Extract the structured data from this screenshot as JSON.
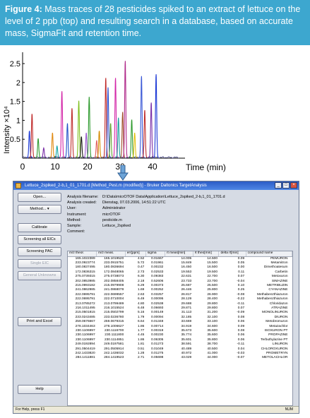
{
  "caption": {
    "figure_label": "Figure 4:",
    "text": " Mass traces of 28 pesticides spiked to an extract of lettuce on the level of 2 ppb (top) and resulting search in a database, based on accurate mass, SigmaFit and retention time."
  },
  "chart_data": {
    "type": "line",
    "title": "",
    "xlabel": "Time (min)",
    "ylabel": "Intensity ×10⁴",
    "xlim": [
      0,
      50
    ],
    "ylim": [
      0,
      2.8
    ],
    "x_ticks": [
      0,
      10,
      20,
      30,
      40
    ],
    "y_ticks": [
      0.5,
      1,
      1.5,
      2,
      2.5
    ],
    "x_tick_labels": [
      "0",
      "10",
      "20",
      "30",
      "40"
    ],
    "y_tick_labels": [
      "0.5",
      "1",
      "1.5",
      "2",
      "2.5"
    ],
    "grid": false,
    "peaks": [
      {
        "rt": 2.1,
        "height": 0.7,
        "color": "#1f3bd6"
      },
      {
        "rt": 2.9,
        "height": 1.15,
        "color": "#c02b2b"
      },
      {
        "rt": 4.8,
        "height": 0.5,
        "color": "#2f9b2f"
      },
      {
        "rt": 6.5,
        "height": 0.25,
        "color": "#7a2fa8"
      },
      {
        "rt": 9.2,
        "height": 0.65,
        "color": "#e08a12"
      },
      {
        "rt": 10.6,
        "height": 0.3,
        "color": "#10a5a5"
      },
      {
        "rt": 12.1,
        "height": 1.75,
        "color": "#d326a8"
      },
      {
        "rt": 13.8,
        "height": 0.9,
        "color": "#2050c8"
      },
      {
        "rt": 15.2,
        "height": 1.3,
        "color": "#c03030"
      },
      {
        "rt": 17.3,
        "height": 1.5,
        "color": "#7fbf1c"
      },
      {
        "rt": 18.1,
        "height": 0.55,
        "color": "#1a1a1a"
      },
      {
        "rt": 19.6,
        "height": 0.65,
        "color": "#9b59d0"
      },
      {
        "rt": 20.5,
        "height": 1.6,
        "color": "#2f9b2f"
      },
      {
        "rt": 22.8,
        "height": 0.45,
        "color": "#e06060"
      },
      {
        "rt": 23.6,
        "height": 0.7,
        "color": "#d48a00"
      },
      {
        "rt": 25.6,
        "height": 2.1,
        "color": "#c02b2b"
      },
      {
        "rt": 26.3,
        "height": 1.85,
        "color": "#3050d0"
      },
      {
        "rt": 27.1,
        "height": 0.9,
        "color": "#60a030"
      },
      {
        "rt": 28.6,
        "height": 2.1,
        "color": "#d326a8"
      },
      {
        "rt": 29.5,
        "height": 1.05,
        "color": "#1aa0a0"
      },
      {
        "rt": 30.8,
        "height": 1.2,
        "color": "#a0522d"
      },
      {
        "rt": 31.6,
        "height": 2.55,
        "color": "#b02a8a"
      },
      {
        "rt": 33.6,
        "height": 1.0,
        "color": "#2f9b2f"
      },
      {
        "rt": 34.5,
        "height": 0.65,
        "color": "#e0c010"
      },
      {
        "rt": 36.6,
        "height": 2.15,
        "color": "#3a58d6"
      },
      {
        "rt": 37.6,
        "height": 1.25,
        "color": "#c03030"
      },
      {
        "rt": 39.6,
        "height": 1.45,
        "color": "#7a2fa8"
      },
      {
        "rt": 41.1,
        "height": 2.2,
        "color": "#1f3bd6"
      }
    ]
  },
  "window": {
    "title": "Lettuce_2spiked_2-b,1_01_1701.d [Method_Pest.m (modified)] - Bruker Daltonics TargetAnalysis",
    "buttons": [
      {
        "label": "Open...",
        "enabled": true
      },
      {
        "label": "Method... ▾",
        "enabled": true
      },
      {
        "label": "Calibrate",
        "enabled": true
      },
      {
        "label": "Screening all EICs",
        "enabled": true
      },
      {
        "label": "Screening PAC",
        "enabled": true
      },
      {
        "label": "Single EIC",
        "enabled": false
      },
      {
        "label": "General Unknowns",
        "enabled": false
      },
      {
        "label": "Print and Excel",
        "enabled": true
      },
      {
        "label": "Help",
        "enabled": true
      }
    ],
    "info": [
      {
        "k": "Analysis filename:",
        "v": "D:\\Data\\micrOTOF Data\\Application\\Lettuce_2spiked_2-b,1_01_1701.d"
      },
      {
        "k": "Analysis created:",
        "v": "Dienstag, 07.03.2006, 14:51:22 UTC"
      },
      {
        "k": "User:",
        "v": "Administrator"
      },
      {
        "k": "Instrument:",
        "v": "micrOTOF"
      },
      {
        "k": "Method:",
        "v": "pesticide.m"
      },
      {
        "k": "Sample:",
        "v": "Lettuce_2spiked"
      },
      {
        "k": "Comment:",
        "v": ""
      }
    ],
    "columns": [
      "m/z theor.",
      "m/z meas.",
      "err[ppm]",
      "sigma",
      "rt meas[min]",
      "rt theo[min]",
      "delta rt[min]",
      "compound name"
    ],
    "rows": [
      [
        "165.1022389",
        "165.1019520",
        "4.52",
        "0.01667",
        "14.005",
        "14.500",
        "0.09",
        "PEMURON"
      ],
      [
        "233.0923774",
        "233.0915751",
        "5.72",
        "0.01961",
        "15.849",
        "15.500",
        "0.05",
        "Metamitron"
      ],
      [
        "180.0837495",
        "180.0836694",
        "0.47",
        "0.00232",
        "16.450",
        "16.500",
        "0.00",
        "Dimethoatesum"
      ],
      [
        "172.0836315",
        "172.0848065",
        "2.73",
        "0.02533",
        "19.553",
        "19.500",
        "0.11",
        "Carbetin"
      ],
      [
        "275.0739315",
        "275.0738073",
        "6.30",
        "0.09383",
        "22.631",
        "22.700",
        "0.07",
        "Metoxuron"
      ],
      [
        "202.0853985",
        "202.0858405",
        "2.18",
        "0.52606",
        "23.733",
        "23.700",
        "-0.04",
        "SIMAZINE"
      ],
      [
        "215.0993182",
        "215.0979908",
        "6.29",
        "0.00373",
        "25.687",
        "25.500",
        "0.10",
        "METRIBUZIN"
      ],
      [
        "241.0862985",
        "241.0868078",
        "1.69",
        "0.00252",
        "26.446",
        "25.800",
        "0.25",
        "CYANAZINE"
      ],
      [
        "222.0695791",
        "222.0699557",
        "2.63",
        "0.03257",
        "26.817",
        "26.900",
        "-0.08",
        "Methabenzthiazuron"
      ],
      [
        "222.0695791",
        "222.0710004",
        "6.49",
        "0.00095",
        "28.129",
        "28.400",
        "-0.22",
        "Methabenzthiazuron"
      ],
      [
        "213.0785272",
        "213.0799489",
        "4.80",
        "0.02538",
        "29.688",
        "29.800",
        "-0.11",
        "Chloridazon"
      ],
      [
        "216.1011495",
        "216.1015524",
        "6.48",
        "0.06693",
        "29.871",
        "29.800",
        "0.07",
        "ATRAZINE"
      ],
      [
        "215.0501815",
        "215.0502799",
        "5.16",
        "0.00149",
        "31.113",
        "31.200",
        "-0.09",
        "MONOLINURON"
      ],
      [
        "233.0243485",
        "233.0236780",
        "1.79",
        "0.00094",
        "32.185",
        "32.100",
        "0.08",
        "DIURON"
      ],
      [
        "259.0676667",
        "259.0679315",
        "6.64",
        "0.01348",
        "33.669",
        "33.100",
        "0.06",
        "Metobromuron"
      ],
      [
        "278.1034463",
        "278.1006627",
        "1.86",
        "0.00714",
        "34.919",
        "34.600",
        "0.09",
        "Metazachlor"
      ],
      [
        "230.1106997",
        "230.1116700",
        "1.77",
        "0.00319",
        "35.673",
        "35.600",
        "0.08",
        "ISOXURON PT"
      ],
      [
        "230.1106997",
        "230.1111800",
        "4.45",
        "0.00230",
        "35.774",
        "35.600",
        "0.06",
        "PROPAZINE"
      ],
      [
        "230.1106997",
        "230.1114851",
        "1.86",
        "0.06305",
        "35.601",
        "35.800",
        "0.06",
        "Terbuthylazine PT"
      ],
      [
        "249.0192894",
        "249.0197581",
        "1.81",
        "0.01273",
        "38.591",
        "38.700",
        "-0.11",
        "LINURON"
      ],
      [
        "291.0504419",
        "291.0505914",
        "0.51",
        "0.01049",
        "40.489",
        "40.500",
        "0.04",
        "CHLOROXURON"
      ],
      [
        "242.1433820",
        "242.1436032",
        "1.28",
        "0.01275",
        "40.972",
        "41.000",
        "-0.03",
        "PROMETRYN"
      ],
      [
        "284.1411881",
        "284.1419523",
        "2.71",
        "0.05698",
        "43.029",
        "44.000",
        "-0.07",
        "METOLACHLOR"
      ]
    ],
    "status": "For Help, press F1",
    "num_indicator": "NUM"
  }
}
